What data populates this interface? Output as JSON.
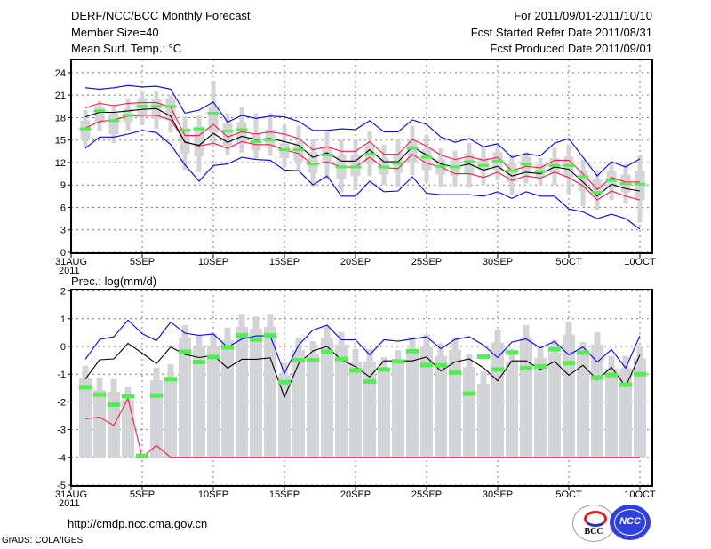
{
  "header": {
    "title": "DERF/NCC/BCC Monthly Forecast",
    "member": "Member Size=40",
    "variable": "Mean Surf. Temp.: °C",
    "period": "For 2011/09/01-2011/10/10",
    "started": "Fcst Started Refer Date 2011/08/31",
    "produced": "Fcst Produced Date 2011/09/01"
  },
  "footer": {
    "url": "http://cmdp.ncc.cma.gov.cn",
    "credit": "GrADS: COLA/IGES",
    "logos": [
      "BCC",
      "NCC"
    ]
  },
  "colors": {
    "max_min": "#0000ff",
    "spread": "#ff1a3c",
    "mean": "#000000",
    "observed": "#4ff04f",
    "climate": "#d3d4d8"
  },
  "chart_data": [
    {
      "type": "line",
      "title": "Mean Surf. Temp.: °C",
      "days": [
        1,
        2,
        3,
        4,
        5,
        6,
        7,
        8,
        9,
        10,
        11,
        12,
        13,
        14,
        15,
        16,
        17,
        18,
        19,
        20,
        21,
        22,
        23,
        24,
        25,
        26,
        27,
        28,
        29,
        30,
        31,
        32,
        33,
        34,
        35,
        36,
        37,
        38,
        39,
        40
      ],
      "xticks": [
        "31AUG",
        "5SEP",
        "10SEP",
        "15SEP",
        "20SEP",
        "25SEP",
        "30SEP",
        "5OCT",
        "10OCT"
      ],
      "xyear": "2011",
      "yticks": [
        0,
        3,
        6,
        9,
        12,
        15,
        18,
        21,
        24
      ],
      "ylim": [
        0,
        24
      ],
      "grid": true,
      "series": {
        "max": [
          22.0,
          21.8,
          22.0,
          22.3,
          22.1,
          22.2,
          21.8,
          18.6,
          19.0,
          20.1,
          17.4,
          18.3,
          17.9,
          18.2,
          18.1,
          17.5,
          16.3,
          16.3,
          16.5,
          16.4,
          17.6,
          16.1,
          16.1,
          17.7,
          17.1,
          15.4,
          14.7,
          15.2,
          14.1,
          14.5,
          12.7,
          13.2,
          12.9,
          14.6,
          15.2,
          12.7,
          10.2,
          12.1,
          11.4,
          12.5
        ],
        "upper": [
          19.3,
          19.9,
          19.6,
          19.9,
          20.0,
          20.0,
          19.4,
          15.6,
          15.6,
          17.1,
          15.4,
          16.1,
          15.8,
          16.1,
          15.8,
          15.2,
          13.7,
          14.1,
          13.5,
          13.5,
          14.8,
          13.1,
          13.1,
          15.1,
          14.2,
          13.0,
          12.4,
          12.8,
          12.3,
          12.7,
          10.9,
          11.5,
          11.3,
          12.3,
          12.3,
          10.5,
          8.4,
          10.0,
          9.4,
          9.4
        ],
        "mean": [
          18.1,
          18.7,
          18.7,
          18.9,
          19.1,
          19.2,
          18.2,
          14.7,
          14.3,
          15.9,
          14.7,
          15.5,
          15.1,
          15.2,
          14.8,
          14.3,
          12.7,
          13.3,
          12.2,
          12.2,
          13.7,
          12.1,
          12.1,
          14.1,
          13.0,
          11.8,
          11.4,
          11.8,
          11.0,
          11.5,
          10.2,
          10.7,
          10.5,
          11.4,
          11.1,
          9.4,
          7.5,
          9.1,
          8.5,
          8.2
        ],
        "lower": [
          16.6,
          17.5,
          17.7,
          18.2,
          18.3,
          18.3,
          17.7,
          14.8,
          14.2,
          14.6,
          13.9,
          14.8,
          14.4,
          14.4,
          13.7,
          13.2,
          11.7,
          12.1,
          11.4,
          11.4,
          12.7,
          11.3,
          11.2,
          13.1,
          11.9,
          11.4,
          10.5,
          10.5,
          10.0,
          10.7,
          9.6,
          10.2,
          9.9,
          10.7,
          10.0,
          8.9,
          7.0,
          8.2,
          7.5,
          7.0
        ],
        "min": [
          13.9,
          15.4,
          15.4,
          15.8,
          16.3,
          16.0,
          14.4,
          11.7,
          9.5,
          11.6,
          11.8,
          12.7,
          12.4,
          12.3,
          11.0,
          10.9,
          9.0,
          10.2,
          7.5,
          7.5,
          9.5,
          8.1,
          8.2,
          10.1,
          7.9,
          7.7,
          7.7,
          7.7,
          7.5,
          8.1,
          7.2,
          8.1,
          7.5,
          7.5,
          5.8,
          5.4,
          4.5,
          5.1,
          4.5,
          3.1
        ],
        "observed": [
          16.5,
          18.9,
          17.6,
          18.3,
          19.5,
          19.5,
          19.5,
          16.3,
          16.5,
          18.6,
          16.2,
          16.4,
          14.8,
          15.0,
          13.7,
          13.7,
          11.8,
          13.0,
          11.4,
          11.4,
          13.1,
          11.4,
          11.9,
          13.9,
          12.7,
          11.5,
          11.4,
          12.1,
          11.6,
          12.2,
          10.9,
          11.8,
          10.8,
          11.6,
          11.6,
          10.1,
          8.0,
          9.6,
          9.2,
          9.1
        ],
        "clim_whisker_low": [
          14.0,
          16.2,
          14.6,
          16.3,
          17.0,
          16.5,
          16.0,
          11.0,
          10.7,
          14.2,
          13.0,
          13.3,
          12.5,
          12.9,
          11.4,
          10.8,
          8.8,
          9.8,
          8.0,
          8.3,
          10.2,
          9.0,
          8.8,
          10.3,
          9.4,
          8.8,
          8.8,
          8.6,
          9.0,
          9.6,
          7.6,
          9.2,
          8.9,
          9.0,
          7.8,
          6.2,
          5.7,
          7.0,
          6.5,
          4.0
        ],
        "clim_box_low": [
          15.2,
          17.4,
          15.8,
          17.4,
          18.4,
          17.8,
          17.6,
          13.2,
          12.8,
          16.0,
          14.2,
          14.6,
          13.6,
          14.2,
          12.6,
          12.2,
          10.6,
          11.8,
          9.8,
          10.2,
          11.8,
          10.4,
          10.6,
          12.0,
          11.0,
          10.4,
          10.2,
          10.4,
          10.8,
          11.0,
          9.4,
          10.4,
          10.0,
          10.6,
          10.0,
          8.2,
          7.8,
          8.6,
          8.0,
          7.0
        ],
        "clim_box_high": [
          17.6,
          19.4,
          18.6,
          19.2,
          20.6,
          20.4,
          20.6,
          16.6,
          16.8,
          19.4,
          17.2,
          17.4,
          15.8,
          16.4,
          14.6,
          14.6,
          13.4,
          14.0,
          13.0,
          13.0,
          14.2,
          12.6,
          13.2,
          15.0,
          13.8,
          12.4,
          12.4,
          13.2,
          12.6,
          13.4,
          11.8,
          12.8,
          11.8,
          12.6,
          12.8,
          11.0,
          9.8,
          10.8,
          10.4,
          10.8
        ],
        "clim_whisker_high": [
          19.0,
          20.2,
          19.4,
          20.6,
          21.4,
          21.6,
          21.0,
          18.2,
          18.4,
          22.9,
          18.6,
          19.4,
          18.6,
          18.6,
          17.0,
          16.9,
          15.2,
          16.4,
          15.0,
          15.2,
          16.2,
          14.4,
          15.2,
          16.9,
          15.7,
          13.9,
          13.6,
          14.6,
          14.0,
          14.0,
          13.1,
          13.4,
          12.6,
          14.0,
          14.4,
          12.4,
          11.0,
          12.0,
          11.8,
          13.0
        ]
      }
    },
    {
      "type": "line",
      "title": "Prec.: log(mm/d)",
      "xticks": [
        "31AUG",
        "5SEP",
        "10SEP",
        "15SEP",
        "20SEP",
        "25SEP",
        "30SEP",
        "5OCT",
        "10OCT"
      ],
      "xyear": "2011",
      "yticks": [
        -5,
        -4,
        -3,
        -2,
        -1,
        0,
        1,
        2
      ],
      "ylim": [
        -5,
        2
      ],
      "grid": true,
      "series": {
        "max": [
          -0.46,
          0.25,
          0.35,
          0.95,
          0.46,
          0.21,
          0.88,
          0.48,
          0.4,
          0.45,
          -0.03,
          0.27,
          0.38,
          0.38,
          -0.97,
          0.05,
          0.59,
          0.77,
          0.24,
          0.24,
          -0.3,
          0.24,
          0.19,
          0.27,
          0.35,
          -0.08,
          0.25,
          0.35,
          0.05,
          -0.4,
          0.16,
          0.27,
          -0.05,
          0.18,
          -0.3,
          -0.02,
          -0.56,
          -0.11,
          -0.78,
          0.38
        ],
        "mean": [
          -1.18,
          -0.48,
          -0.45,
          0.11,
          -0.24,
          -0.62,
          -0.02,
          -0.29,
          -0.4,
          -0.32,
          -0.78,
          -0.46,
          -0.46,
          -0.41,
          -1.83,
          -0.62,
          -0.16,
          0.0,
          -0.48,
          -0.73,
          -1.1,
          -0.52,
          -0.52,
          -0.52,
          -0.38,
          -0.88,
          -0.56,
          -0.45,
          -0.77,
          -1.24,
          -0.52,
          -0.52,
          -0.83,
          -0.54,
          -1.04,
          -0.68,
          -1.2,
          -0.75,
          -1.45,
          -0.3
        ],
        "min": [
          -2.61,
          -2.55,
          -2.85,
          -1.88,
          -4.0,
          -3.57,
          -4.0,
          -4.0,
          -4.0,
          -4.0,
          -4.0,
          -4.0,
          -4.0,
          -4.0,
          -4.0,
          -4.0,
          -4.0,
          -4.0,
          -4.0,
          -4.0,
          -4.0,
          -4.0,
          -4.0,
          -4.0,
          -4.0,
          -4.0,
          -4.0,
          -4.0,
          -4.0,
          -4.0,
          -4.0,
          -4.0,
          -4.0,
          -4.0,
          -4.0,
          -4.0,
          -4.0,
          -4.0,
          -4.0,
          -4.0
        ],
        "observed": [
          -1.47,
          -1.74,
          -2.1,
          -1.8,
          -3.95,
          -1.77,
          -1.18,
          -0.19,
          -0.56,
          -0.38,
          -0.03,
          0.4,
          0.25,
          0.4,
          -1.29,
          -0.5,
          -0.5,
          -0.19,
          -0.45,
          -0.86,
          -1.27,
          -0.83,
          -0.54,
          -0.17,
          -0.67,
          -0.68,
          -0.94,
          -1.7,
          -0.37,
          -0.83,
          -0.22,
          -0.78,
          -0.72,
          -0.1,
          -0.6,
          -0.22,
          -1.12,
          -1.03,
          -1.38,
          -1.0
        ],
        "clim_top": [
          -0.7,
          -1.13,
          -1.18,
          -1.48,
          null,
          -0.77,
          -0.65,
          0.77,
          0.43,
          0.48,
          0.68,
          1.16,
          1.08,
          1.16,
          -0.59,
          0.32,
          0.19,
          0.75,
          0.52,
          -0.09,
          -0.09,
          -0.39,
          -0.13,
          0.35,
          0.43,
          0.11,
          0.32,
          -0.29,
          -0.9,
          0.59,
          -0.09,
          0.78,
          0.03,
          0.24,
          0.88,
          0.16,
          0.52,
          -0.34,
          -0.34,
          0.02
        ]
      }
    }
  ]
}
